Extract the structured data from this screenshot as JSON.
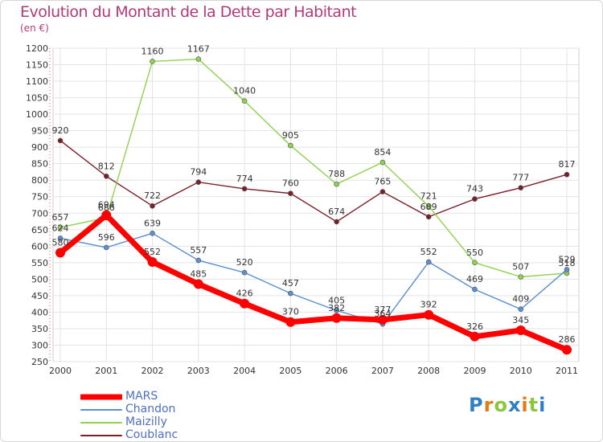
{
  "header": {
    "title": "Evolution du Montant de la Dette par Habitant",
    "subtitle": "(en €)"
  },
  "logo": {
    "text": "Proxiti",
    "letter_colors": [
      "#2f7fc8",
      "#e07b18",
      "#8cc63f",
      "#2f7fc8",
      "#e07b18",
      "#8cc63f",
      "#2f7fc8"
    ]
  },
  "chart_data": {
    "type": "line",
    "title": "Evolution du Montant de la Dette par Habitant",
    "subtitle": "(en €)",
    "xlabel": "",
    "ylabel": "",
    "x": [
      "2000",
      "2001",
      "2002",
      "2003",
      "2004",
      "2005",
      "2006",
      "2007",
      "2008",
      "2009",
      "2010",
      "2011"
    ],
    "ylim": [
      250,
      1200
    ],
    "yticks": [
      250,
      300,
      350,
      400,
      450,
      500,
      550,
      600,
      650,
      700,
      750,
      800,
      850,
      900,
      950,
      1000,
      1050,
      1100,
      1150,
      1200
    ],
    "grid": true,
    "legend_position": "bottom-left",
    "series": [
      {
        "name": "Coublanc",
        "color": "#7a1f28",
        "values": [
          920,
          812,
          722,
          794,
          774,
          760,
          674,
          765,
          689,
          743,
          777,
          817
        ]
      },
      {
        "name": "Maizilly",
        "color": "#8fd24e",
        "values": [
          657,
          686,
          1160,
          1167,
          1040,
          905,
          788,
          854,
          721,
          550,
          507,
          518
        ]
      },
      {
        "name": "Chandon",
        "color": "#5b8fd0",
        "values": [
          624,
          596,
          639,
          557,
          520,
          457,
          405,
          364,
          552,
          469,
          409,
          529
        ]
      },
      {
        "name": "MARS",
        "color": "#ff0000",
        "values": [
          580,
          694,
          552,
          485,
          426,
          370,
          382,
          377,
          392,
          326,
          345,
          286
        ]
      }
    ],
    "legend_order": [
      "MARS",
      "Chandon",
      "Maizilly",
      "Coublanc"
    ]
  }
}
